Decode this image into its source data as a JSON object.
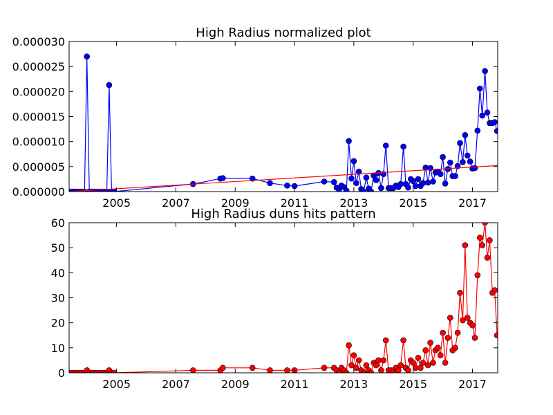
{
  "chart_data": [
    {
      "type": "line",
      "title": "High Radius normalized plot",
      "xlabel": "",
      "ylabel": "",
      "xlim": [
        2003.4,
        2017.85
      ],
      "ylim": [
        0,
        3e-05
      ],
      "x_ticks": [
        "2005",
        "2007",
        "2009",
        "2011",
        "2013",
        "2015",
        "2017"
      ],
      "y_ticks": [
        "0.000000",
        "0.000005",
        "0.000010",
        "0.000015",
        "0.000020",
        "0.000025",
        "0.000030"
      ],
      "grid": false,
      "series": [
        {
          "color": "#0000ff",
          "marker": "circle",
          "points": [
            [
              2003.42,
              0
            ],
            [
              2003.5,
              0
            ],
            [
              2003.58,
              0
            ],
            [
              2003.67,
              0
            ],
            [
              2003.75,
              0
            ],
            [
              2003.83,
              0
            ],
            [
              2003.92,
              0
            ],
            [
              2004.0,
              2.7e-05
            ],
            [
              2004.08,
              0
            ],
            [
              2004.17,
              0
            ],
            [
              2004.25,
              0
            ],
            [
              2004.33,
              0
            ],
            [
              2004.42,
              0
            ],
            [
              2004.5,
              0
            ],
            [
              2004.58,
              0
            ],
            [
              2004.67,
              0
            ],
            [
              2004.75,
              2.13e-05
            ],
            [
              2004.83,
              0
            ],
            [
              2004.92,
              0
            ],
            [
              2007.58,
              1.5e-06
            ],
            [
              2008.5,
              2.6e-06
            ],
            [
              2008.58,
              2.7e-06
            ],
            [
              2009.58,
              2.6e-06
            ],
            [
              2010.17,
              1.7e-06
            ],
            [
              2010.75,
              1.2e-06
            ],
            [
              2011.0,
              1.1e-06
            ],
            [
              2012.0,
              2e-06
            ],
            [
              2012.33,
              1.9e-06
            ],
            [
              2012.42,
              8e-07
            ],
            [
              2012.5,
              4e-07
            ],
            [
              2012.58,
              1.2e-06
            ],
            [
              2012.67,
              9e-07
            ],
            [
              2012.75,
              2e-07
            ],
            [
              2012.83,
              1.01e-05
            ],
            [
              2012.92,
              2.6e-06
            ],
            [
              2013.0,
              6.1e-06
            ],
            [
              2013.08,
              1.7e-06
            ],
            [
              2013.17,
              4e-06
            ],
            [
              2013.25,
              5e-07
            ],
            [
              2013.33,
              0
            ],
            [
              2013.42,
              2.8e-06
            ],
            [
              2013.5,
              6e-07
            ],
            [
              2013.58,
              0
            ],
            [
              2013.67,
              3.2e-06
            ],
            [
              2013.75,
              2.3e-06
            ],
            [
              2013.83,
              3.7e-06
            ],
            [
              2013.92,
              7e-07
            ],
            [
              2014.0,
              3.5e-06
            ],
            [
              2014.08,
              9.2e-06
            ],
            [
              2014.17,
              7e-07
            ],
            [
              2014.25,
              7e-07
            ],
            [
              2014.33,
              7e-07
            ],
            [
              2014.42,
              1.2e-06
            ],
            [
              2014.5,
              9e-07
            ],
            [
              2014.58,
              1.5e-06
            ],
            [
              2014.67,
              9e-06
            ],
            [
              2014.75,
              1.5e-06
            ],
            [
              2014.83,
              8e-07
            ],
            [
              2014.92,
              2.5e-06
            ],
            [
              2015.0,
              2.1e-06
            ],
            [
              2015.08,
              1.1e-06
            ],
            [
              2015.17,
              2.5e-06
            ],
            [
              2015.25,
              1.1e-06
            ],
            [
              2015.33,
              1.7e-06
            ],
            [
              2015.42,
              4.8e-06
            ],
            [
              2015.5,
              1.8e-06
            ],
            [
              2015.58,
              4.7e-06
            ],
            [
              2015.67,
              2e-06
            ],
            [
              2015.75,
              3.8e-06
            ],
            [
              2015.83,
              4e-06
            ],
            [
              2015.92,
              3.5e-06
            ],
            [
              2016.0,
              6.9e-06
            ],
            [
              2016.08,
              1.6e-06
            ],
            [
              2016.17,
              4.5e-06
            ],
            [
              2016.25,
              5.8e-06
            ],
            [
              2016.33,
              3.1e-06
            ],
            [
              2016.42,
              3.1e-06
            ],
            [
              2016.5,
              5.1e-06
            ],
            [
              2016.58,
              9.7e-06
            ],
            [
              2016.67,
              5.9e-06
            ],
            [
              2016.75,
              1.13e-05
            ],
            [
              2016.83,
              7.2e-06
            ],
            [
              2016.92,
              6e-06
            ],
            [
              2017.0,
              4.6e-06
            ],
            [
              2017.08,
              4.7e-06
            ],
            [
              2017.17,
              1.22e-05
            ],
            [
              2017.25,
              2.06e-05
            ],
            [
              2017.33,
              1.52e-05
            ],
            [
              2017.42,
              2.41e-05
            ],
            [
              2017.5,
              1.58e-05
            ],
            [
              2017.58,
              1.37e-05
            ],
            [
              2017.67,
              1.37e-05
            ],
            [
              2017.75,
              1.39e-05
            ],
            [
              2017.83,
              1.21e-05
            ]
          ]
        },
        {
          "color": "#ff0000",
          "marker": "none",
          "points": [
            [
              2003.42,
              0
            ],
            [
              2017.85,
              5.2e-06
            ]
          ]
        }
      ]
    },
    {
      "type": "line",
      "title": "High Radius duns hits pattern",
      "xlabel": "",
      "ylabel": "",
      "xlim": [
        2003.4,
        2017.85
      ],
      "ylim": [
        0,
        60
      ],
      "x_ticks": [
        "2005",
        "2007",
        "2009",
        "2011",
        "2013",
        "2015",
        "2017"
      ],
      "y_ticks": [
        "0",
        "10",
        "20",
        "30",
        "40",
        "50",
        "60"
      ],
      "grid": false,
      "series": [
        {
          "color": "#ff0000",
          "marker": "circle",
          "points": [
            [
              2003.42,
              0
            ],
            [
              2003.5,
              0
            ],
            [
              2003.58,
              0
            ],
            [
              2003.67,
              0
            ],
            [
              2003.75,
              0
            ],
            [
              2003.83,
              0
            ],
            [
              2003.92,
              0
            ],
            [
              2004.0,
              1
            ],
            [
              2004.08,
              0
            ],
            [
              2004.17,
              0
            ],
            [
              2004.25,
              0
            ],
            [
              2004.33,
              0
            ],
            [
              2004.42,
              0
            ],
            [
              2004.5,
              0
            ],
            [
              2004.58,
              0
            ],
            [
              2004.67,
              0
            ],
            [
              2004.75,
              1
            ],
            [
              2004.83,
              0
            ],
            [
              2004.92,
              0
            ],
            [
              2007.58,
              1
            ],
            [
              2008.5,
              1
            ],
            [
              2008.58,
              2
            ],
            [
              2009.58,
              2
            ],
            [
              2010.17,
              1
            ],
            [
              2010.75,
              1
            ],
            [
              2011.0,
              1
            ],
            [
              2012.0,
              2
            ],
            [
              2012.33,
              2
            ],
            [
              2012.42,
              1
            ],
            [
              2012.5,
              0
            ],
            [
              2012.58,
              2
            ],
            [
              2012.67,
              1
            ],
            [
              2012.75,
              0
            ],
            [
              2012.83,
              11
            ],
            [
              2012.92,
              3
            ],
            [
              2013.0,
              7
            ],
            [
              2013.08,
              2
            ],
            [
              2013.17,
              5
            ],
            [
              2013.25,
              1
            ],
            [
              2013.33,
              0
            ],
            [
              2013.42,
              3
            ],
            [
              2013.5,
              1
            ],
            [
              2013.58,
              0
            ],
            [
              2013.67,
              4
            ],
            [
              2013.75,
              3
            ],
            [
              2013.83,
              5
            ],
            [
              2013.92,
              1
            ],
            [
              2014.0,
              5
            ],
            [
              2014.08,
              13
            ],
            [
              2014.17,
              1
            ],
            [
              2014.25,
              1
            ],
            [
              2014.33,
              1
            ],
            [
              2014.42,
              2
            ],
            [
              2014.5,
              1
            ],
            [
              2014.58,
              3
            ],
            [
              2014.67,
              13
            ],
            [
              2014.75,
              2
            ],
            [
              2014.83,
              1
            ],
            [
              2014.92,
              5
            ],
            [
              2015.0,
              4
            ],
            [
              2015.08,
              2
            ],
            [
              2015.17,
              6
            ],
            [
              2015.25,
              2
            ],
            [
              2015.33,
              4
            ],
            [
              2015.42,
              9
            ],
            [
              2015.5,
              3
            ],
            [
              2015.58,
              12
            ],
            [
              2015.67,
              4
            ],
            [
              2015.75,
              9
            ],
            [
              2015.83,
              10
            ],
            [
              2015.92,
              7
            ],
            [
              2016.0,
              16
            ],
            [
              2016.08,
              4
            ],
            [
              2016.17,
              14
            ],
            [
              2016.25,
              22
            ],
            [
              2016.33,
              9
            ],
            [
              2016.42,
              10
            ],
            [
              2016.5,
              16
            ],
            [
              2016.58,
              32
            ],
            [
              2016.67,
              21
            ],
            [
              2016.75,
              51
            ],
            [
              2016.83,
              22
            ],
            [
              2016.92,
              20
            ],
            [
              2017.0,
              19
            ],
            [
              2017.08,
              14
            ],
            [
              2017.17,
              39
            ],
            [
              2017.25,
              54
            ],
            [
              2017.33,
              51
            ],
            [
              2017.42,
              60
            ],
            [
              2017.5,
              46
            ],
            [
              2017.58,
              53
            ],
            [
              2017.67,
              32
            ],
            [
              2017.75,
              33
            ],
            [
              2017.83,
              15
            ]
          ]
        }
      ]
    }
  ]
}
